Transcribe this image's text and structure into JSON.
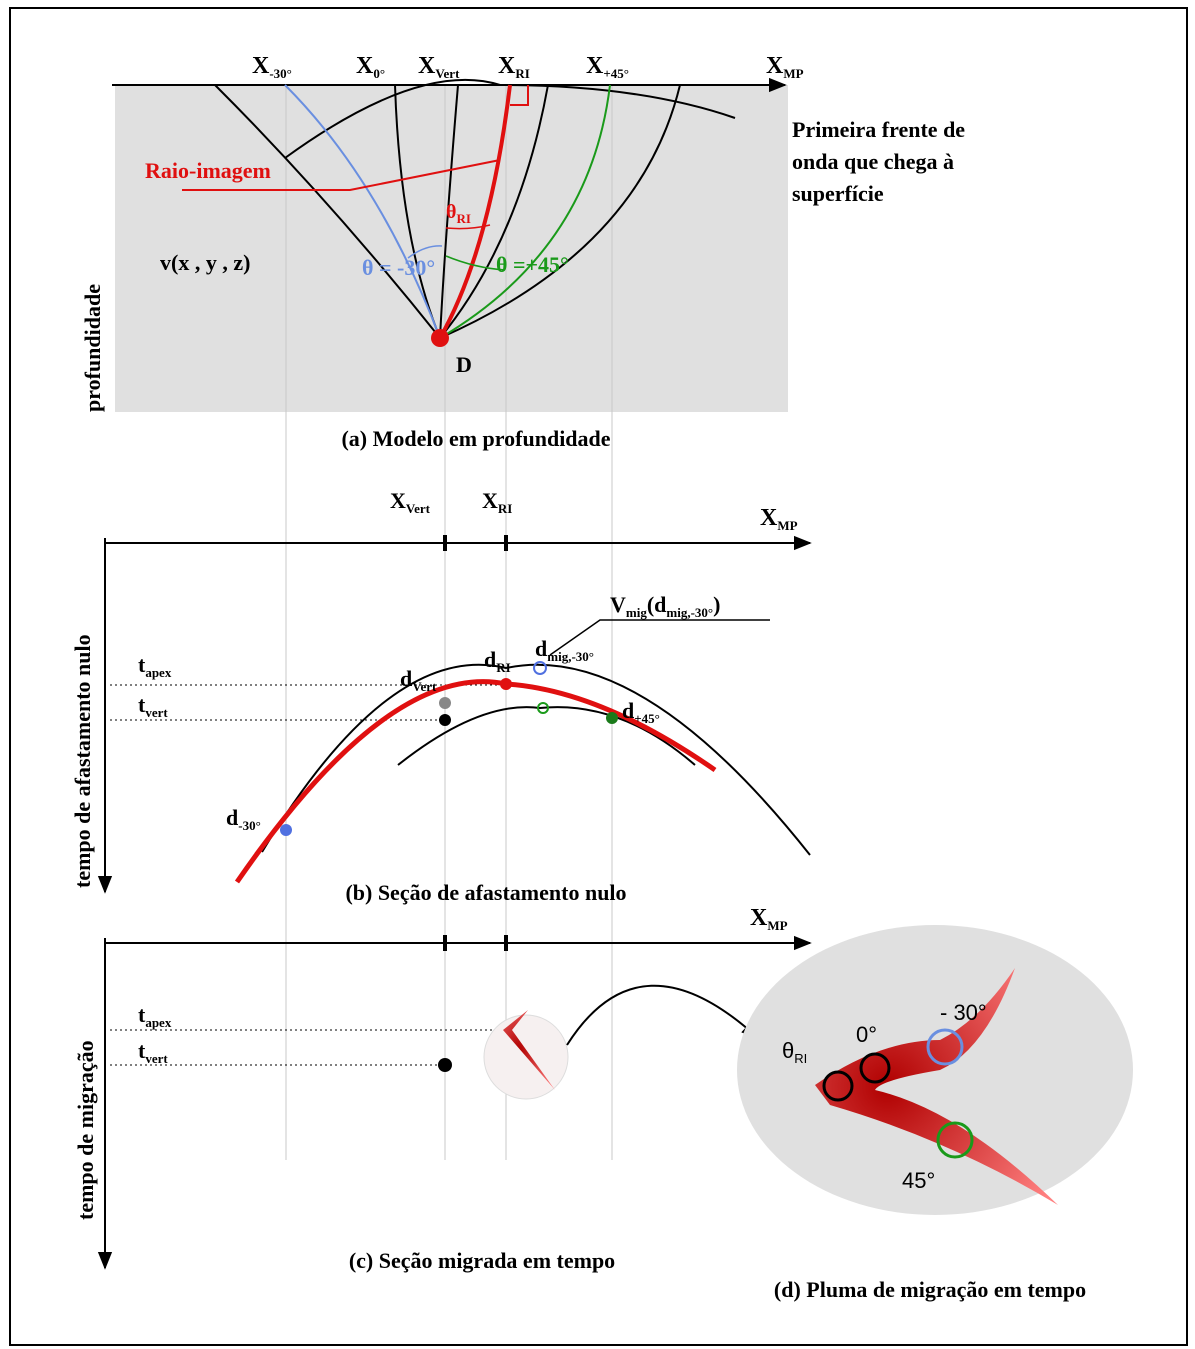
{
  "panel_a": {
    "top_labels": [
      {
        "base": "X",
        "sub": "-30°"
      },
      {
        "base": "X",
        "sub": "0°"
      },
      {
        "base": "X",
        "sub": "Vert"
      },
      {
        "base": "X",
        "sub": "RI"
      },
      {
        "base": "X",
        "sub": "+45°"
      },
      {
        "base": "X",
        "sub": "MP"
      }
    ],
    "wavefront_note": [
      "Primeira frente de",
      "onda que chega à",
      "superfície"
    ],
    "image_ray": "Raio-imagem",
    "theta_ri": {
      "base": "θ",
      "sub": "RI"
    },
    "theta_m30": "θ = -30°",
    "theta_p45": "θ =+45°",
    "velocity": "v(x , y , z)",
    "point": "D",
    "y_label": "profundidade",
    "caption": "(a) Modelo em profundidade"
  },
  "panel_b": {
    "top_labels": [
      {
        "base": "X",
        "sub": "Vert"
      },
      {
        "base": "X",
        "sub": "RI"
      },
      {
        "base": "X",
        "sub": "MP"
      }
    ],
    "vmig": {
      "base": "V",
      "sub": "mig",
      "rest": "(d",
      "sub2": "mig,-30°",
      "end": ")"
    },
    "t_apex": {
      "base": "t",
      "sub": "apex"
    },
    "t_vert": {
      "base": "t",
      "sub": "vert"
    },
    "d_vert": {
      "base": "d",
      "sub": "Vert"
    },
    "d_ri": {
      "base": "d",
      "sub": "RI"
    },
    "d_mig": {
      "base": "d",
      "sub": "mig,-30°"
    },
    "d_p45": {
      "base": "d",
      "sub": "+45°"
    },
    "d_m30": {
      "base": "d",
      "sub": "-30°"
    },
    "y_label": "tempo de afastamento nulo",
    "caption": "(b) Seção de afastamento nulo"
  },
  "panel_c": {
    "top_label": {
      "base": "X",
      "sub": "MP"
    },
    "t_apex": {
      "base": "t",
      "sub": "apex"
    },
    "t_vert": {
      "base": "t",
      "sub": "vert"
    },
    "y_label": "tempo de migração",
    "caption": "(c) Seção migrada em tempo"
  },
  "panel_d": {
    "theta_ri": {
      "base": "θ",
      "sub": "RI"
    },
    "angle_0": "0°",
    "angle_m30": "- 30°",
    "angle_45": "45°",
    "caption": "(d) Pluma de migração em tempo"
  }
}
